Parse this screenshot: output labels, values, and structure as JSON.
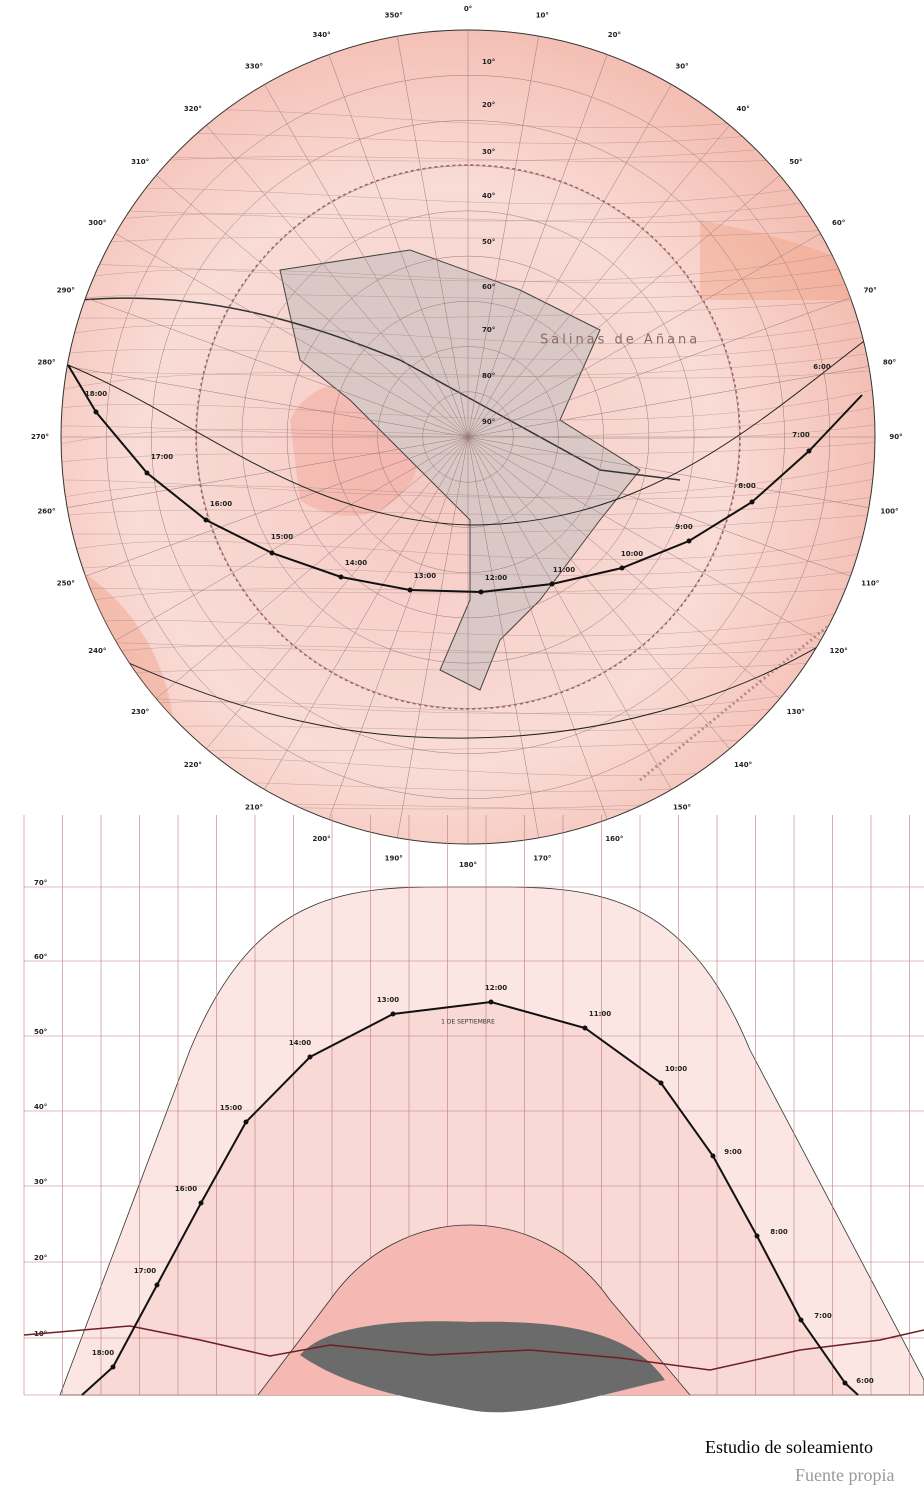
{
  "polar": {
    "azimuth_labels": [
      "0°",
      "10°",
      "20°",
      "30°",
      "40°",
      "50°",
      "60°",
      "70°",
      "80°",
      "90°",
      "100°",
      "110°",
      "120°",
      "130°",
      "140°",
      "150°",
      "160°",
      "170°",
      "180°",
      "190°",
      "200°",
      "210°",
      "220°",
      "230°",
      "240°",
      "250°",
      "260°",
      "270°",
      "280°",
      "290°",
      "300°",
      "310°",
      "320°",
      "330°",
      "340°",
      "350°"
    ],
    "altitude_labels": [
      "10°",
      "20°",
      "30°",
      "40°",
      "50°",
      "60°",
      "70°",
      "80°",
      "90°"
    ],
    "hours": [
      "18:00",
      "17:00",
      "16:00",
      "15:00",
      "14:00",
      "13:00",
      "12:00",
      "11:00",
      "10:00",
      "9:00",
      "8:00",
      "7:00",
      "6:00"
    ],
    "place_label": "Salinas de Añana"
  },
  "elevation": {
    "altitude_labels": [
      "70°",
      "60°",
      "50°",
      "40°",
      "30°",
      "20°",
      "10°"
    ],
    "hours": [
      "18:00",
      "17:00",
      "16:00",
      "15:00",
      "14:00",
      "13:00",
      "12:00",
      "11:00",
      "10:00",
      "9:00",
      "8:00",
      "7:00",
      "6:00"
    ],
    "date_label": "1 DE SEPTIEMBRE"
  },
  "caption": {
    "title": "Estudio de soleamiento",
    "source": "Fuente propia"
  }
}
